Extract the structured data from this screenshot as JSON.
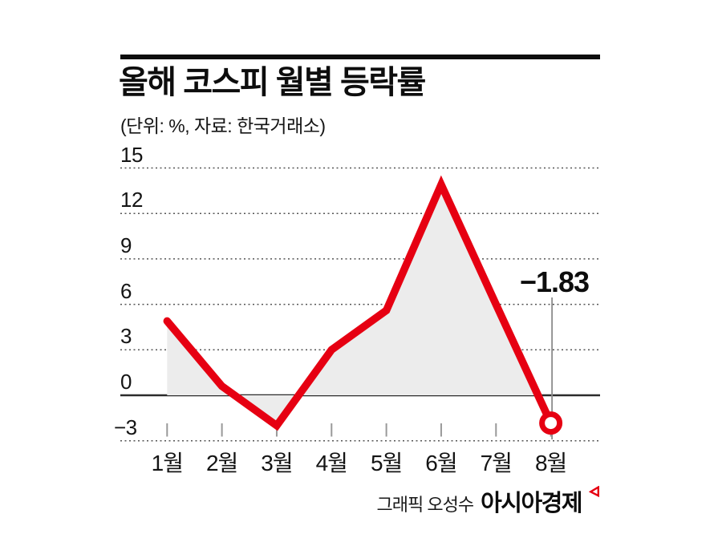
{
  "header": {
    "title": "올해 코스피 월별 등락률",
    "subtitle": "(단위: %, 자료: 한국거래소)"
  },
  "chart_data": {
    "type": "line",
    "categories": [
      "1월",
      "2월",
      "3월",
      "4월",
      "5월",
      "6월",
      "7월",
      "8월"
    ],
    "values": [
      4.9,
      0.6,
      -2.0,
      3.0,
      5.6,
      13.9,
      6.0,
      -1.83
    ],
    "y_ticks": [
      15,
      12,
      9,
      6,
      3,
      0,
      -3
    ],
    "ylim": [
      -3.5,
      16
    ],
    "title": "올해 코스피 월별 등락률",
    "xlabel": "",
    "ylabel": "%",
    "grid": "horizontal dotted, solid zero baseline",
    "legend": "none",
    "area_fill": true,
    "annotation": {
      "text": "−1.83",
      "month": "8월",
      "value": -1.83
    },
    "marker": "open circle on last point",
    "colors": {
      "line": "#e60012",
      "fill": "#ececec",
      "zero_line": "#2b2b2b",
      "gridline": "#555555",
      "tick": "#999999",
      "leader_line": "#8c8c8c"
    }
  },
  "footer": {
    "credit": "그래픽 오성수",
    "brand": "아시아경제",
    "brand_mark": "red open triangle logo"
  }
}
